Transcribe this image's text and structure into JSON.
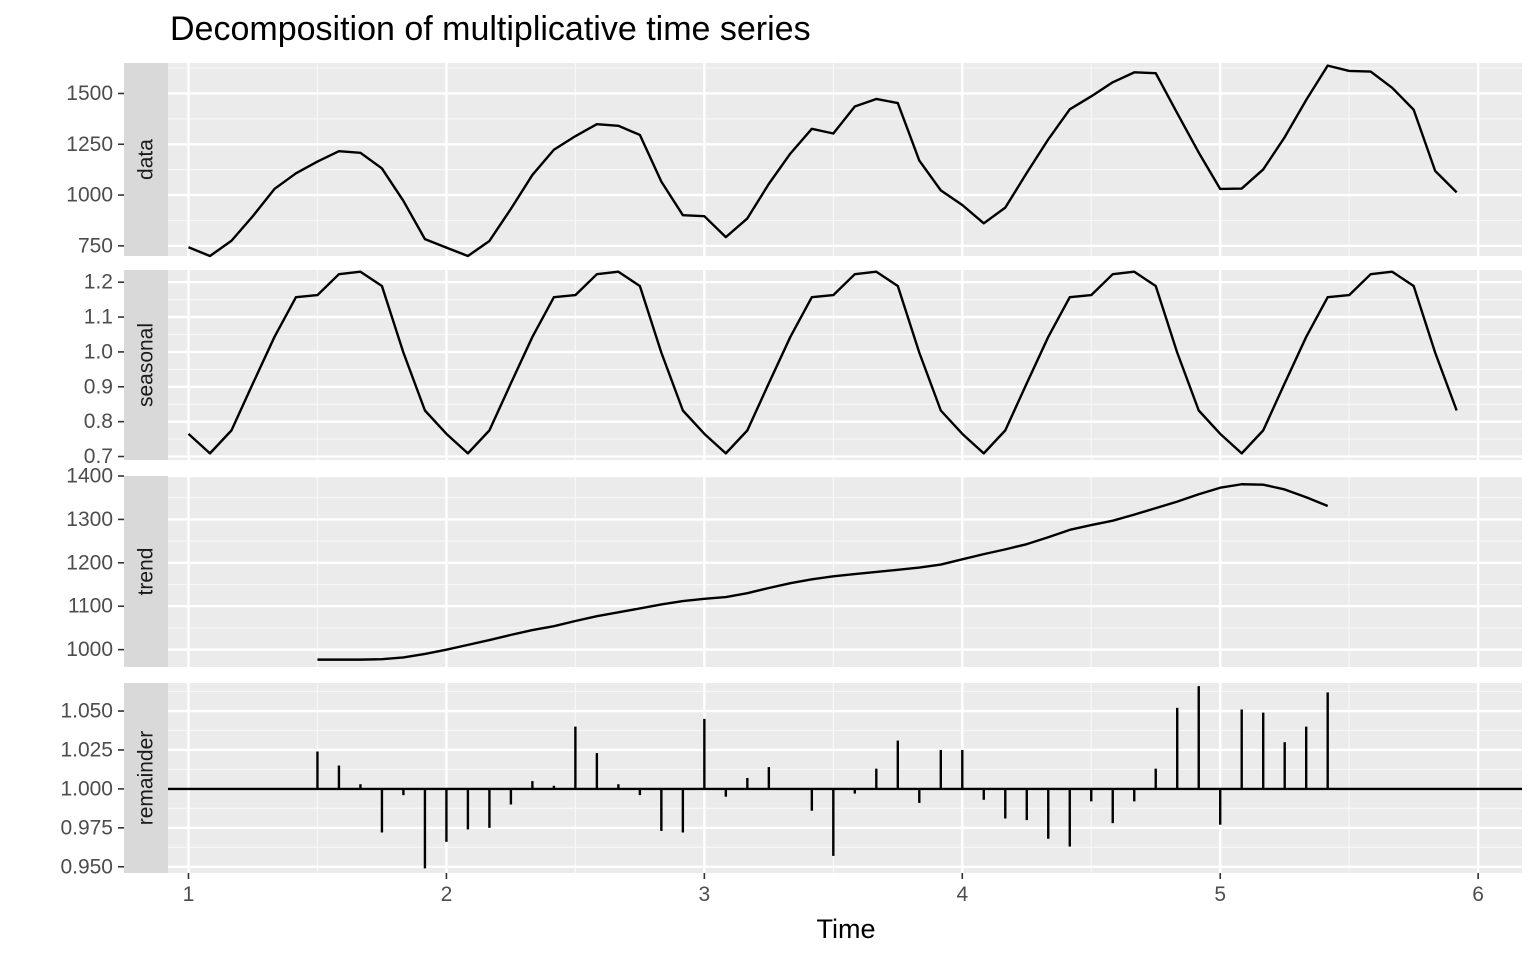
{
  "chart_data": {
    "type": "line",
    "title": "Decomposition of multiplicative time series",
    "xlabel": "Time",
    "xlim": [
      0.75,
      6.17
    ],
    "x_ticks": [
      1,
      2,
      3,
      4,
      5,
      6
    ],
    "grid": true,
    "x": [
      1.0,
      1.0833,
      1.1667,
      1.25,
      1.3333,
      1.4167,
      1.5,
      1.5833,
      1.6667,
      1.75,
      1.8333,
      1.9167,
      2.0,
      2.0833,
      2.1667,
      2.25,
      2.3333,
      2.4167,
      2.5,
      2.5833,
      2.6667,
      2.75,
      2.8333,
      2.9167,
      3.0,
      3.0833,
      3.1667,
      3.25,
      3.3333,
      3.4167,
      3.5,
      3.5833,
      3.6667,
      3.75,
      3.8333,
      3.9167,
      4.0,
      4.0833,
      4.1667,
      4.25,
      4.3333,
      4.4167,
      4.5,
      4.5833,
      4.6667,
      4.75,
      4.8333,
      4.9167,
      5.0,
      5.0833,
      5.1667,
      5.25,
      5.3333,
      5.4167,
      5.5,
      5.5833,
      5.6667,
      5.75,
      5.8333,
      5.9167
    ],
    "panels": [
      {
        "name": "data",
        "mark": "line",
        "ylim": [
          700,
          1650
        ],
        "y_ticks": [
          750,
          1000,
          1250,
          1500
        ],
        "y_tick_labels": [
          "750",
          "1000",
          "1250",
          "1500"
        ],
        "values": [
          743,
          700,
          775,
          897,
          1030,
          1107,
          1165,
          1216,
          1208,
          1131,
          971,
          783,
          741,
          700,
          774,
          932,
          1099,
          1223,
          1290,
          1349,
          1341,
          1296,
          1066,
          901,
          896,
          793,
          885,
          1055,
          1204,
          1326,
          1303,
          1436,
          1473,
          1453,
          1170,
          1023,
          951,
          861,
          938,
          1109,
          1274,
          1422,
          1486,
          1555,
          1604,
          1600,
          1403,
          1209,
          1030,
          1032,
          1126,
          1285,
          1468,
          1637,
          1611,
          1608,
          1528,
          1420,
          1119,
          1013
        ]
      },
      {
        "name": "seasonal",
        "mark": "line",
        "ylim": [
          0.69,
          1.235
        ],
        "y_ticks": [
          0.7,
          0.8,
          0.9,
          1.0,
          1.1,
          1.2
        ],
        "y_tick_labels": [
          "0.7",
          "0.8",
          "0.9",
          "1.0",
          "1.1",
          "1.2"
        ],
        "values": [
          0.765,
          0.709,
          0.775,
          0.91,
          1.043,
          1.157,
          1.163,
          1.223,
          1.23,
          1.189,
          0.998,
          0.832,
          0.765,
          0.709,
          0.775,
          0.91,
          1.043,
          1.157,
          1.163,
          1.223,
          1.23,
          1.189,
          0.998,
          0.832,
          0.765,
          0.709,
          0.775,
          0.91,
          1.043,
          1.157,
          1.163,
          1.223,
          1.23,
          1.189,
          0.998,
          0.832,
          0.765,
          0.709,
          0.775,
          0.91,
          1.043,
          1.157,
          1.163,
          1.223,
          1.23,
          1.189,
          0.998,
          0.832,
          0.765,
          0.709,
          0.775,
          0.91,
          1.043,
          1.157,
          1.163,
          1.223,
          1.23,
          1.189,
          0.998,
          0.832
        ]
      },
      {
        "name": "trend",
        "mark": "line",
        "ylim": [
          960,
          1400
        ],
        "y_ticks": [
          1000,
          1100,
          1200,
          1300,
          1400
        ],
        "y_tick_labels": [
          "1000",
          "1100",
          "1200",
          "1300",
          "1400"
        ],
        "values": [
          null,
          null,
          null,
          null,
          null,
          null,
          977,
          977,
          977,
          978,
          982,
          990,
          1000,
          1011,
          1022,
          1034,
          1045,
          1054,
          1066,
          1077,
          1086,
          1095,
          1104,
          1112,
          1117,
          1121,
          1130,
          1142,
          1153,
          1162,
          1169,
          1174,
          1179,
          1184,
          1189,
          1196,
          1208,
          1220,
          1231,
          1243,
          1259,
          1276,
          1287,
          1297,
          1311,
          1326,
          1341,
          1358,
          1373,
          1381,
          1380,
          1369,
          1351,
          1331,
          null,
          null,
          null,
          null,
          null,
          null
        ]
      },
      {
        "name": "remainder",
        "mark": "bar",
        "ylim": [
          0.946,
          1.068
        ],
        "baseline": 1.0,
        "y_ticks": [
          0.95,
          0.975,
          1.0,
          1.025,
          1.05
        ],
        "y_tick_labels": [
          "0.950",
          "0.975",
          "1.000",
          "1.025",
          "1.050"
        ],
        "values": [
          null,
          null,
          null,
          null,
          null,
          null,
          1.024,
          1.015,
          1.003,
          0.972,
          0.996,
          0.949,
          0.966,
          0.974,
          0.975,
          0.99,
          1.005,
          1.002,
          1.04,
          1.023,
          1.003,
          0.996,
          0.973,
          0.972,
          1.045,
          0.995,
          1.007,
          1.014,
          1.0,
          0.986,
          0.957,
          0.997,
          1.013,
          1.031,
          0.991,
          1.025,
          1.025,
          0.993,
          0.981,
          0.98,
          0.968,
          0.963,
          0.992,
          0.978,
          0.992,
          1.013,
          1.052,
          1.066,
          0.977,
          1.051,
          1.049,
          1.03,
          1.04,
          1.062,
          null,
          null,
          null,
          null,
          null,
          null
        ]
      }
    ]
  }
}
